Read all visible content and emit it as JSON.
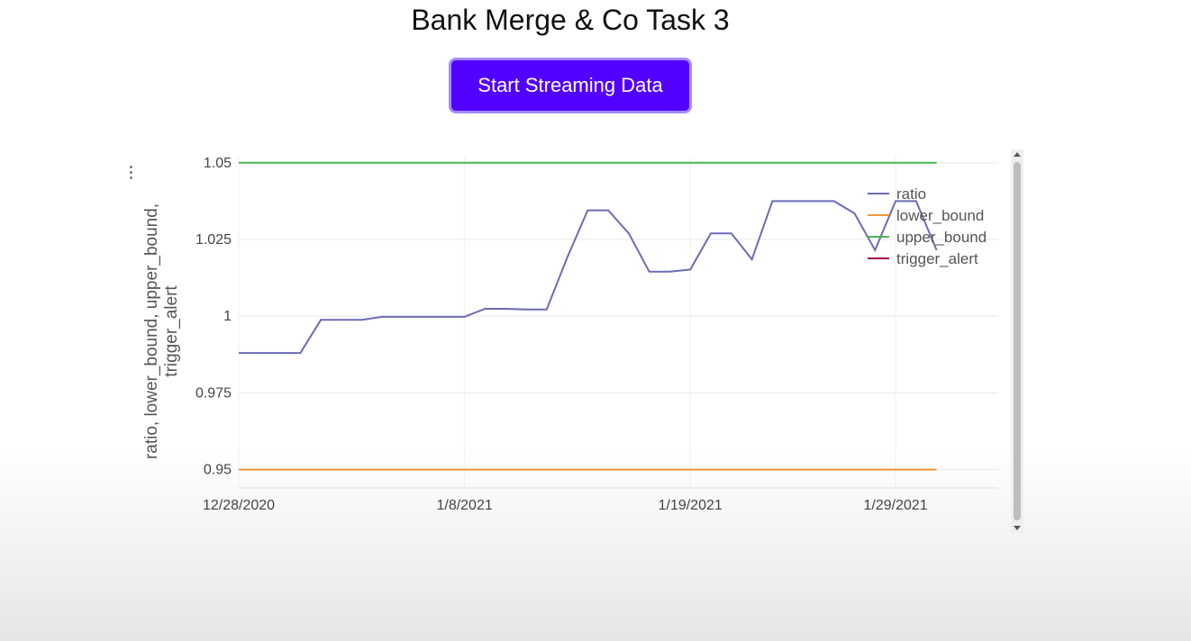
{
  "page": {
    "title": "Bank Merge & Co Task 3",
    "button_label": "Start Streaming Data"
  },
  "colors": {
    "button_bg": "#5200ff",
    "ratio": "#6b6bb5",
    "lower_bound": "#f0953a",
    "upper_bound": "#49b84e",
    "trigger_alert": "#a3123f"
  },
  "icons": [
    "more-options-icon",
    "scroll-up-icon",
    "scroll-down-icon"
  ],
  "chart_data": {
    "type": "line",
    "ylabel": "ratio, lower_bound, upper_bound, trigger_alert",
    "xlabel": "",
    "ylim": [
      0.944,
      1.052
    ],
    "xlim": [
      "2020-12-28",
      "2021-02-03"
    ],
    "y_ticks": [
      0.95,
      0.975,
      1,
      1.025,
      1.05
    ],
    "y_tick_labels": [
      "0.95",
      "0.975",
      "1",
      "1.025",
      "1.05"
    ],
    "x_ticks": [
      "2020-12-28",
      "2021-01-08",
      "2021-01-19",
      "2021-01-29"
    ],
    "x_tick_labels": [
      "12/28/2020",
      "1/8/2021",
      "1/19/2021",
      "1/29/2021"
    ],
    "grid": true,
    "legend_position": "top-right",
    "series": [
      {
        "name": "ratio",
        "x": [
          "2020-12-28",
          "2020-12-29",
          "2020-12-30",
          "2020-12-31",
          "2021-01-01",
          "2021-01-02",
          "2021-01-03",
          "2021-01-04",
          "2021-01-05",
          "2021-01-06",
          "2021-01-07",
          "2021-01-08",
          "2021-01-09",
          "2021-01-10",
          "2021-01-11",
          "2021-01-12",
          "2021-01-13",
          "2021-01-14",
          "2021-01-15",
          "2021-01-16",
          "2021-01-17",
          "2021-01-18",
          "2021-01-19",
          "2021-01-20",
          "2021-01-21",
          "2021-01-22",
          "2021-01-23",
          "2021-01-24",
          "2021-01-25",
          "2021-01-26",
          "2021-01-27",
          "2021-01-28",
          "2021-01-29",
          "2021-01-30",
          "2021-01-31"
        ],
        "y": [
          0.988,
          0.988,
          0.988,
          0.988,
          0.9988,
          0.9988,
          0.9988,
          0.9998,
          0.9998,
          0.9998,
          0.9998,
          0.9998,
          1.0024,
          1.0024,
          1.0022,
          1.0022,
          1.019,
          1.0345,
          1.0345,
          1.027,
          1.0145,
          1.0145,
          1.0152,
          1.027,
          1.027,
          1.0185,
          1.0375,
          1.0375,
          1.0375,
          1.0375,
          1.0335,
          1.0215,
          1.0375,
          1.0375,
          1.0215
        ]
      },
      {
        "name": "lower_bound",
        "x": [
          "2020-12-28",
          "2021-01-31"
        ],
        "y": [
          0.95,
          0.95
        ]
      },
      {
        "name": "upper_bound",
        "x": [
          "2020-12-28",
          "2021-01-31"
        ],
        "y": [
          1.05,
          1.05
        ]
      },
      {
        "name": "trigger_alert",
        "x": [],
        "y": []
      }
    ]
  }
}
